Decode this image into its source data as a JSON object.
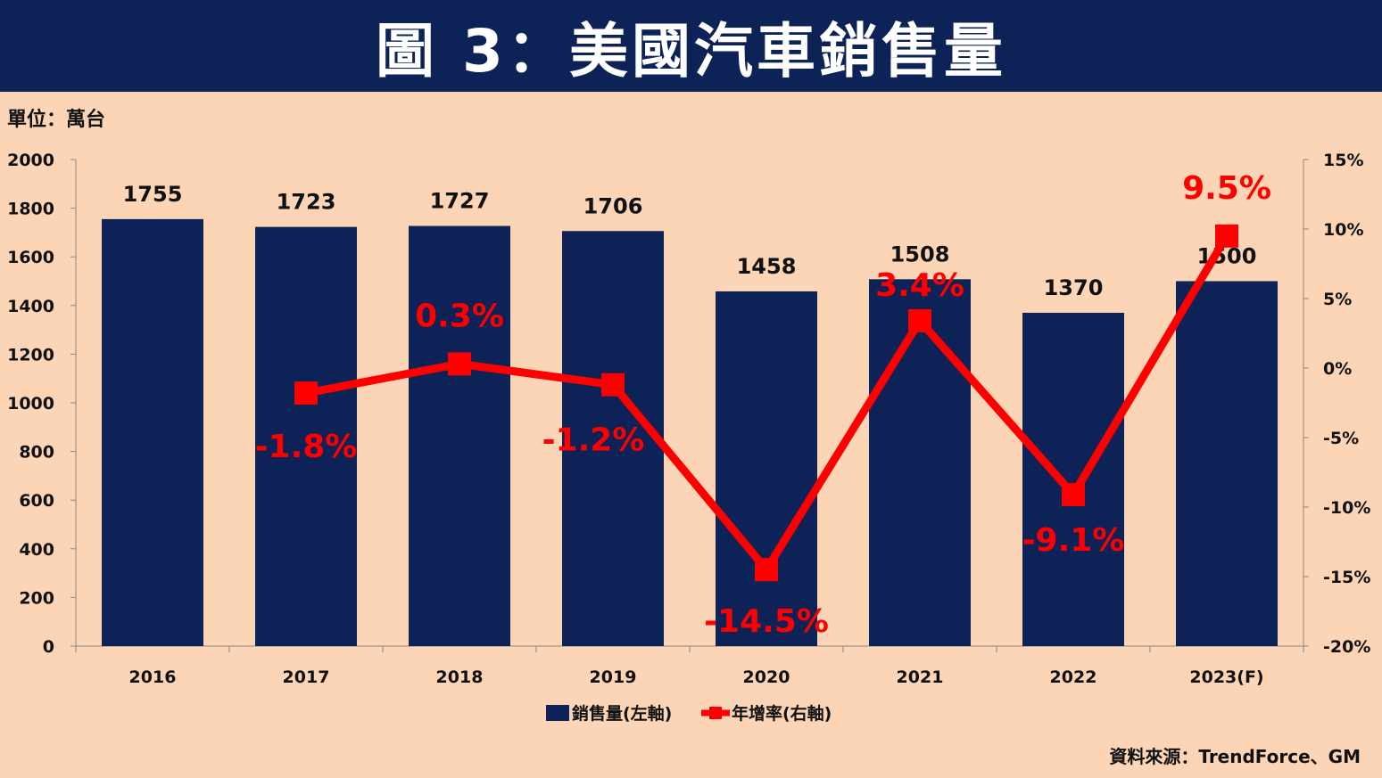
{
  "header": {
    "title": "圖 3：美國汽車銷售量"
  },
  "unit_label": "單位：萬台",
  "source_label": "資料來源：TrendForce、GM",
  "chart_data": {
    "type": "bar",
    "categories": [
      "2016",
      "2017",
      "2018",
      "2019",
      "2020",
      "2021",
      "2022",
      "2023(F)"
    ],
    "series": [
      {
        "name": "銷售量(左軸)",
        "type": "bar",
        "axis": "left",
        "color": "#0d2257",
        "values": [
          1755,
          1723,
          1727,
          1706,
          1458,
          1508,
          1370,
          1500
        ],
        "data_labels": [
          "1755",
          "1723",
          "1727",
          "1706",
          "1458",
          "1508",
          "1370",
          "1500"
        ]
      },
      {
        "name": "年增率(右軸)",
        "type": "line",
        "axis": "right",
        "color": "#ff0000",
        "values": [
          null,
          -1.8,
          0.3,
          -1.2,
          -14.5,
          3.4,
          -9.1,
          9.5
        ],
        "data_labels": [
          "",
          "-1.8%",
          "0.3%",
          "-1.2%",
          "-14.5%",
          "3.4%",
          "-9.1%",
          "9.5%"
        ]
      }
    ],
    "left_axis": {
      "ylim": [
        0,
        2000
      ],
      "ticks": [
        "0",
        "200",
        "400",
        "600",
        "800",
        "1000",
        "1200",
        "1400",
        "1600",
        "1800",
        "2000"
      ]
    },
    "right_axis": {
      "ylim": [
        -20,
        15
      ],
      "ticks": [
        "-20%",
        "-15%",
        "-10%",
        "-5%",
        "0%",
        "5%",
        "10%",
        "15%"
      ]
    },
    "grid": false,
    "legend_position": "bottom"
  }
}
